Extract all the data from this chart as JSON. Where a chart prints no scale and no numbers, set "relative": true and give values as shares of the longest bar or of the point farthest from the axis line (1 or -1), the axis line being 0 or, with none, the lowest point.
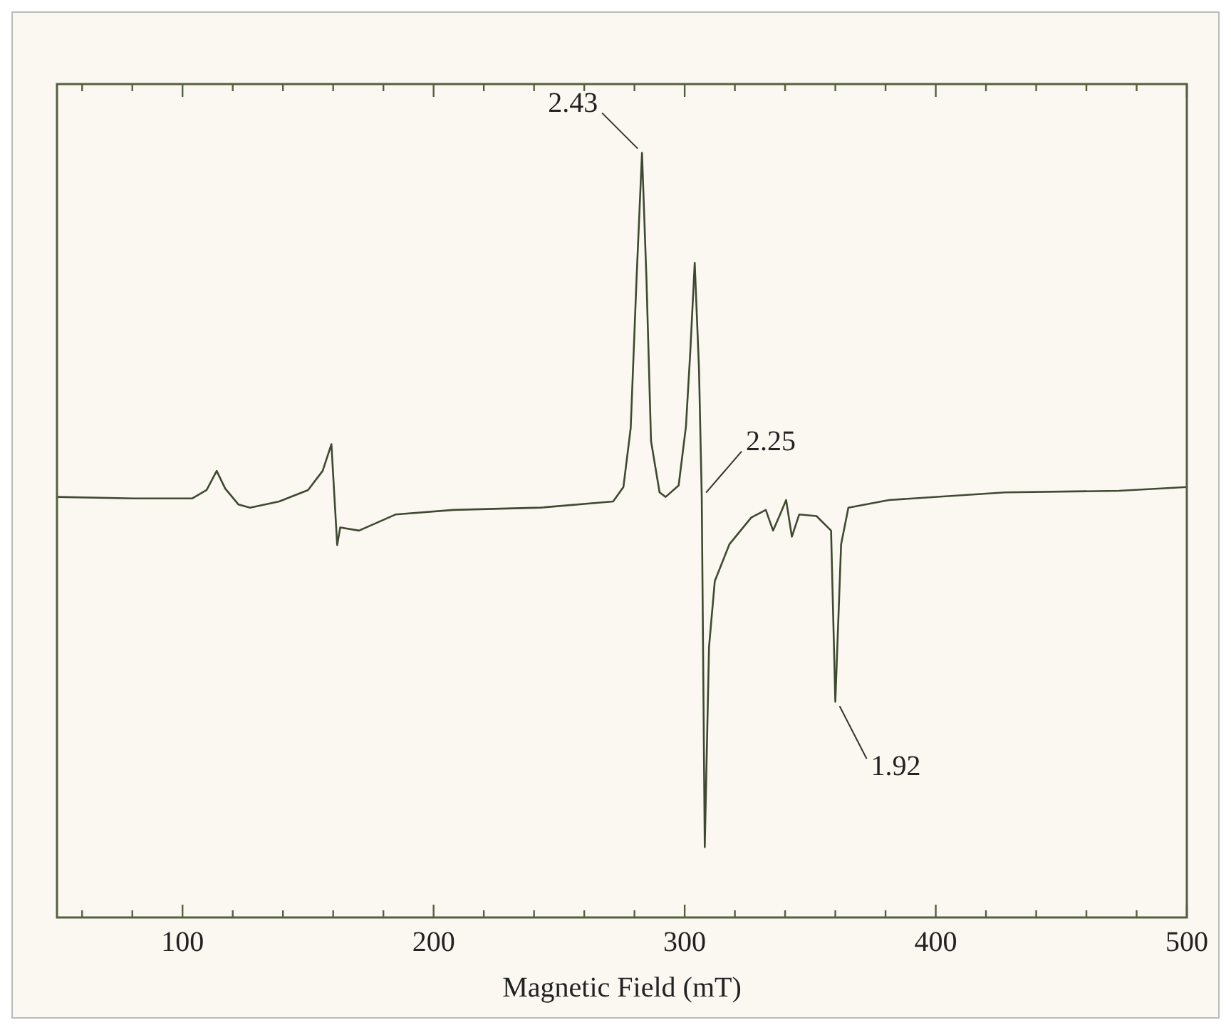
{
  "chart_data": {
    "type": "line",
    "xlabel": "Magnetic Field (mT)",
    "relative": true,
    "xlim": [
      50,
      500
    ],
    "xticks": [
      {
        "value": 60,
        "label": null
      },
      {
        "value": 80,
        "label": null
      },
      100,
      {
        "value": 120,
        "label": null
      },
      {
        "value": 140,
        "label": null
      },
      {
        "value": 160,
        "label": null
      },
      {
        "value": 180,
        "label": null
      },
      200,
      {
        "value": 220,
        "label": null
      },
      {
        "value": 240,
        "label": null
      },
      {
        "value": 260,
        "label": null
      },
      {
        "value": 280,
        "label": null
      },
      300,
      {
        "value": 320,
        "label": null
      },
      {
        "value": 340,
        "label": null
      },
      {
        "value": 360,
        "label": null
      },
      {
        "value": 380,
        "label": null
      },
      400,
      {
        "value": 420,
        "label": null
      },
      {
        "value": 440,
        "label": null
      },
      {
        "value": 460,
        "label": null
      },
      {
        "value": 480,
        "label": null
      },
      500
    ],
    "grid": false,
    "legend": false,
    "series": [
      {
        "color": "#3e4a30",
        "x": [
          50,
          80.6,
          103.8,
          109.6,
          113.6,
          117,
          122.3,
          126.9,
          138.5,
          150,
          155.8,
          159.3,
          161.6,
          162.8,
          170.3,
          184.8,
          207.9,
          242.6,
          271.5,
          275.6,
          278.5,
          280.8,
          283,
          284.8,
          286.6,
          290,
          292.4,
          297.6,
          300.5,
          302.2,
          304,
          305.7,
          306.8,
          308,
          309.7,
          312,
          317.8,
          326.5,
          332.3,
          335.2,
          338,
          340.4,
          342.7,
          345.6,
          352.5,
          358.3,
          360,
          362.3,
          365.2,
          381.4,
          427.7,
          473,
          500
        ],
        "values": [
          0.55,
          0.548,
          0.548,
          0.559,
          0.584,
          0.561,
          0.54,
          0.536,
          0.544,
          0.559,
          0.584,
          0.619,
          0.487,
          0.51,
          0.506,
          0.527,
          0.533,
          0.536,
          0.544,
          0.563,
          0.64,
          0.833,
          1.0,
          0.833,
          0.623,
          0.556,
          0.55,
          0.565,
          0.642,
          0.738,
          0.856,
          0.718,
          0.55,
          0.092,
          0.354,
          0.44,
          0.488,
          0.523,
          0.533,
          0.506,
          0.527,
          0.546,
          0.498,
          0.527,
          0.525,
          0.506,
          0.282,
          0.488,
          0.536,
          0.546,
          0.556,
          0.558,
          0.563
        ]
      }
    ],
    "annotations": [
      {
        "text": "2.43",
        "x": 283,
        "y": 1.0
      },
      {
        "text": "2.25",
        "x": 306.8,
        "y": 0.55
      },
      {
        "text": "1.92",
        "x": 360,
        "y": 0.282
      }
    ]
  }
}
